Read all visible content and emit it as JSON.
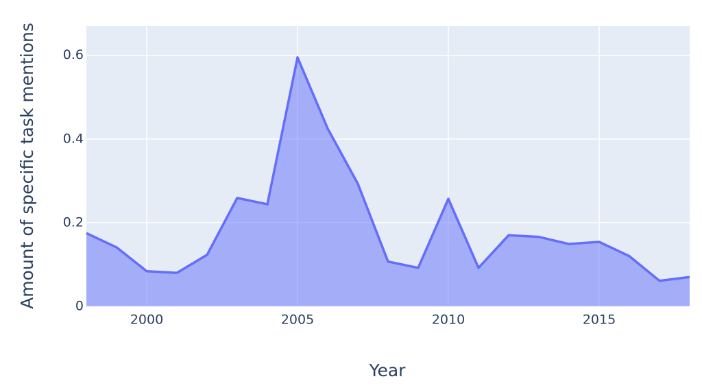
{
  "chart_data": {
    "type": "area",
    "x": [
      1998,
      1999,
      2000,
      2001,
      2002,
      2003,
      2004,
      2005,
      2006,
      2007,
      2008,
      2009,
      2010,
      2011,
      2012,
      2013,
      2014,
      2015,
      2016,
      2017,
      2018
    ],
    "values": [
      0.175,
      0.141,
      0.084,
      0.08,
      0.123,
      0.259,
      0.244,
      0.595,
      0.425,
      0.293,
      0.107,
      0.092,
      0.257,
      0.092,
      0.17,
      0.166,
      0.149,
      0.154,
      0.12,
      0.061,
      0.07
    ],
    "color": "#636efa",
    "xlabel": "Year",
    "ylabel": "Amount of specific task mentions",
    "xlim": [
      1998,
      2018
    ],
    "xticks": [
      2000,
      2005,
      2010,
      2015
    ],
    "ylim": [
      0,
      0.67
    ],
    "yticks": [
      0,
      0.2,
      0.4,
      0.6
    ],
    "grid": true
  }
}
